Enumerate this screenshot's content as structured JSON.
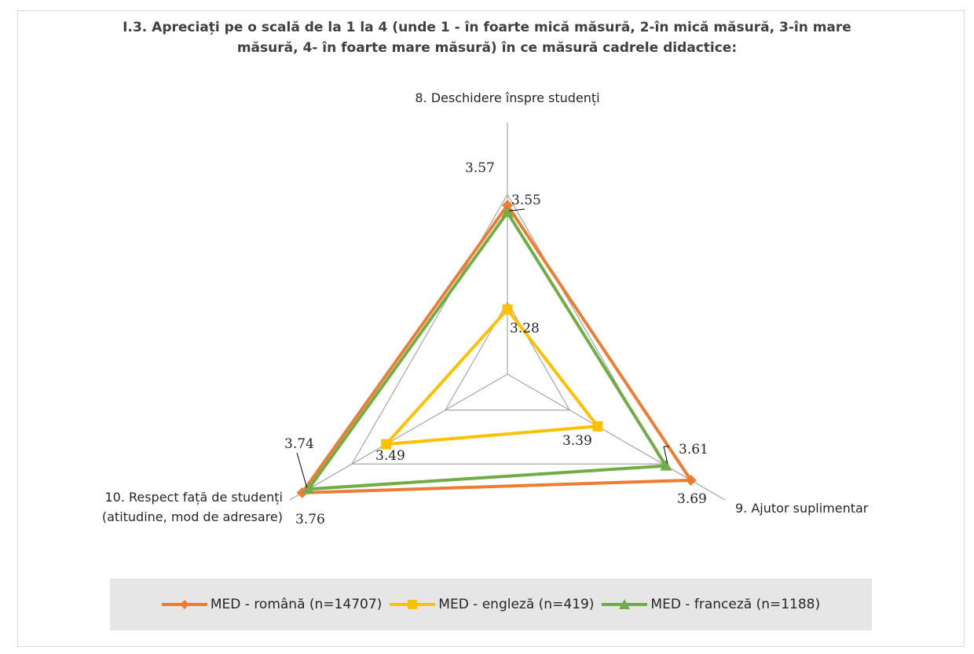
{
  "chart_data": {
    "type": "radar",
    "title_lines": [
      "I.3. Apreciați pe o scală de la 1 la 4 (unde 1 - în foarte mică măsură, 2-în mică măsură, 3-în mare",
      "măsură, 4- în foarte mare măsură)  în ce măsură cadrele didactice:"
    ],
    "axes": [
      {
        "label_lines": [
          "8. Deschidere înspre studenți"
        ]
      },
      {
        "label_lines": [
          "9. Ajutor suplimentar"
        ]
      },
      {
        "label_lines": [
          "10. Respect față de studenți",
          "(atitudine, mod de adresare)"
        ]
      }
    ],
    "rlim": [
      3.1,
      3.8
    ],
    "series": [
      {
        "name": "MED - română (n=14707)",
        "color": "#ed7d31",
        "marker": "diamond",
        "values": [
          3.57,
          3.69,
          3.76
        ]
      },
      {
        "name": "MED - engleză (n=419)",
        "color": "#ffc000",
        "marker": "square",
        "values": [
          3.28,
          3.39,
          3.49
        ]
      },
      {
        "name": "MED - franceză (n=1188)",
        "color": "#70ad47",
        "marker": "triangle",
        "values": [
          3.55,
          3.61,
          3.74
        ]
      }
    ],
    "data_labels": [
      {
        "text": "3.57"
      },
      {
        "text": "3.55"
      },
      {
        "text": "3.28"
      },
      {
        "text": "3.39"
      },
      {
        "text": "3.61"
      },
      {
        "text": "3.69"
      },
      {
        "text": "3.74"
      },
      {
        "text": "3.49"
      },
      {
        "text": "3.76"
      }
    ],
    "legend_position": "bottom"
  }
}
